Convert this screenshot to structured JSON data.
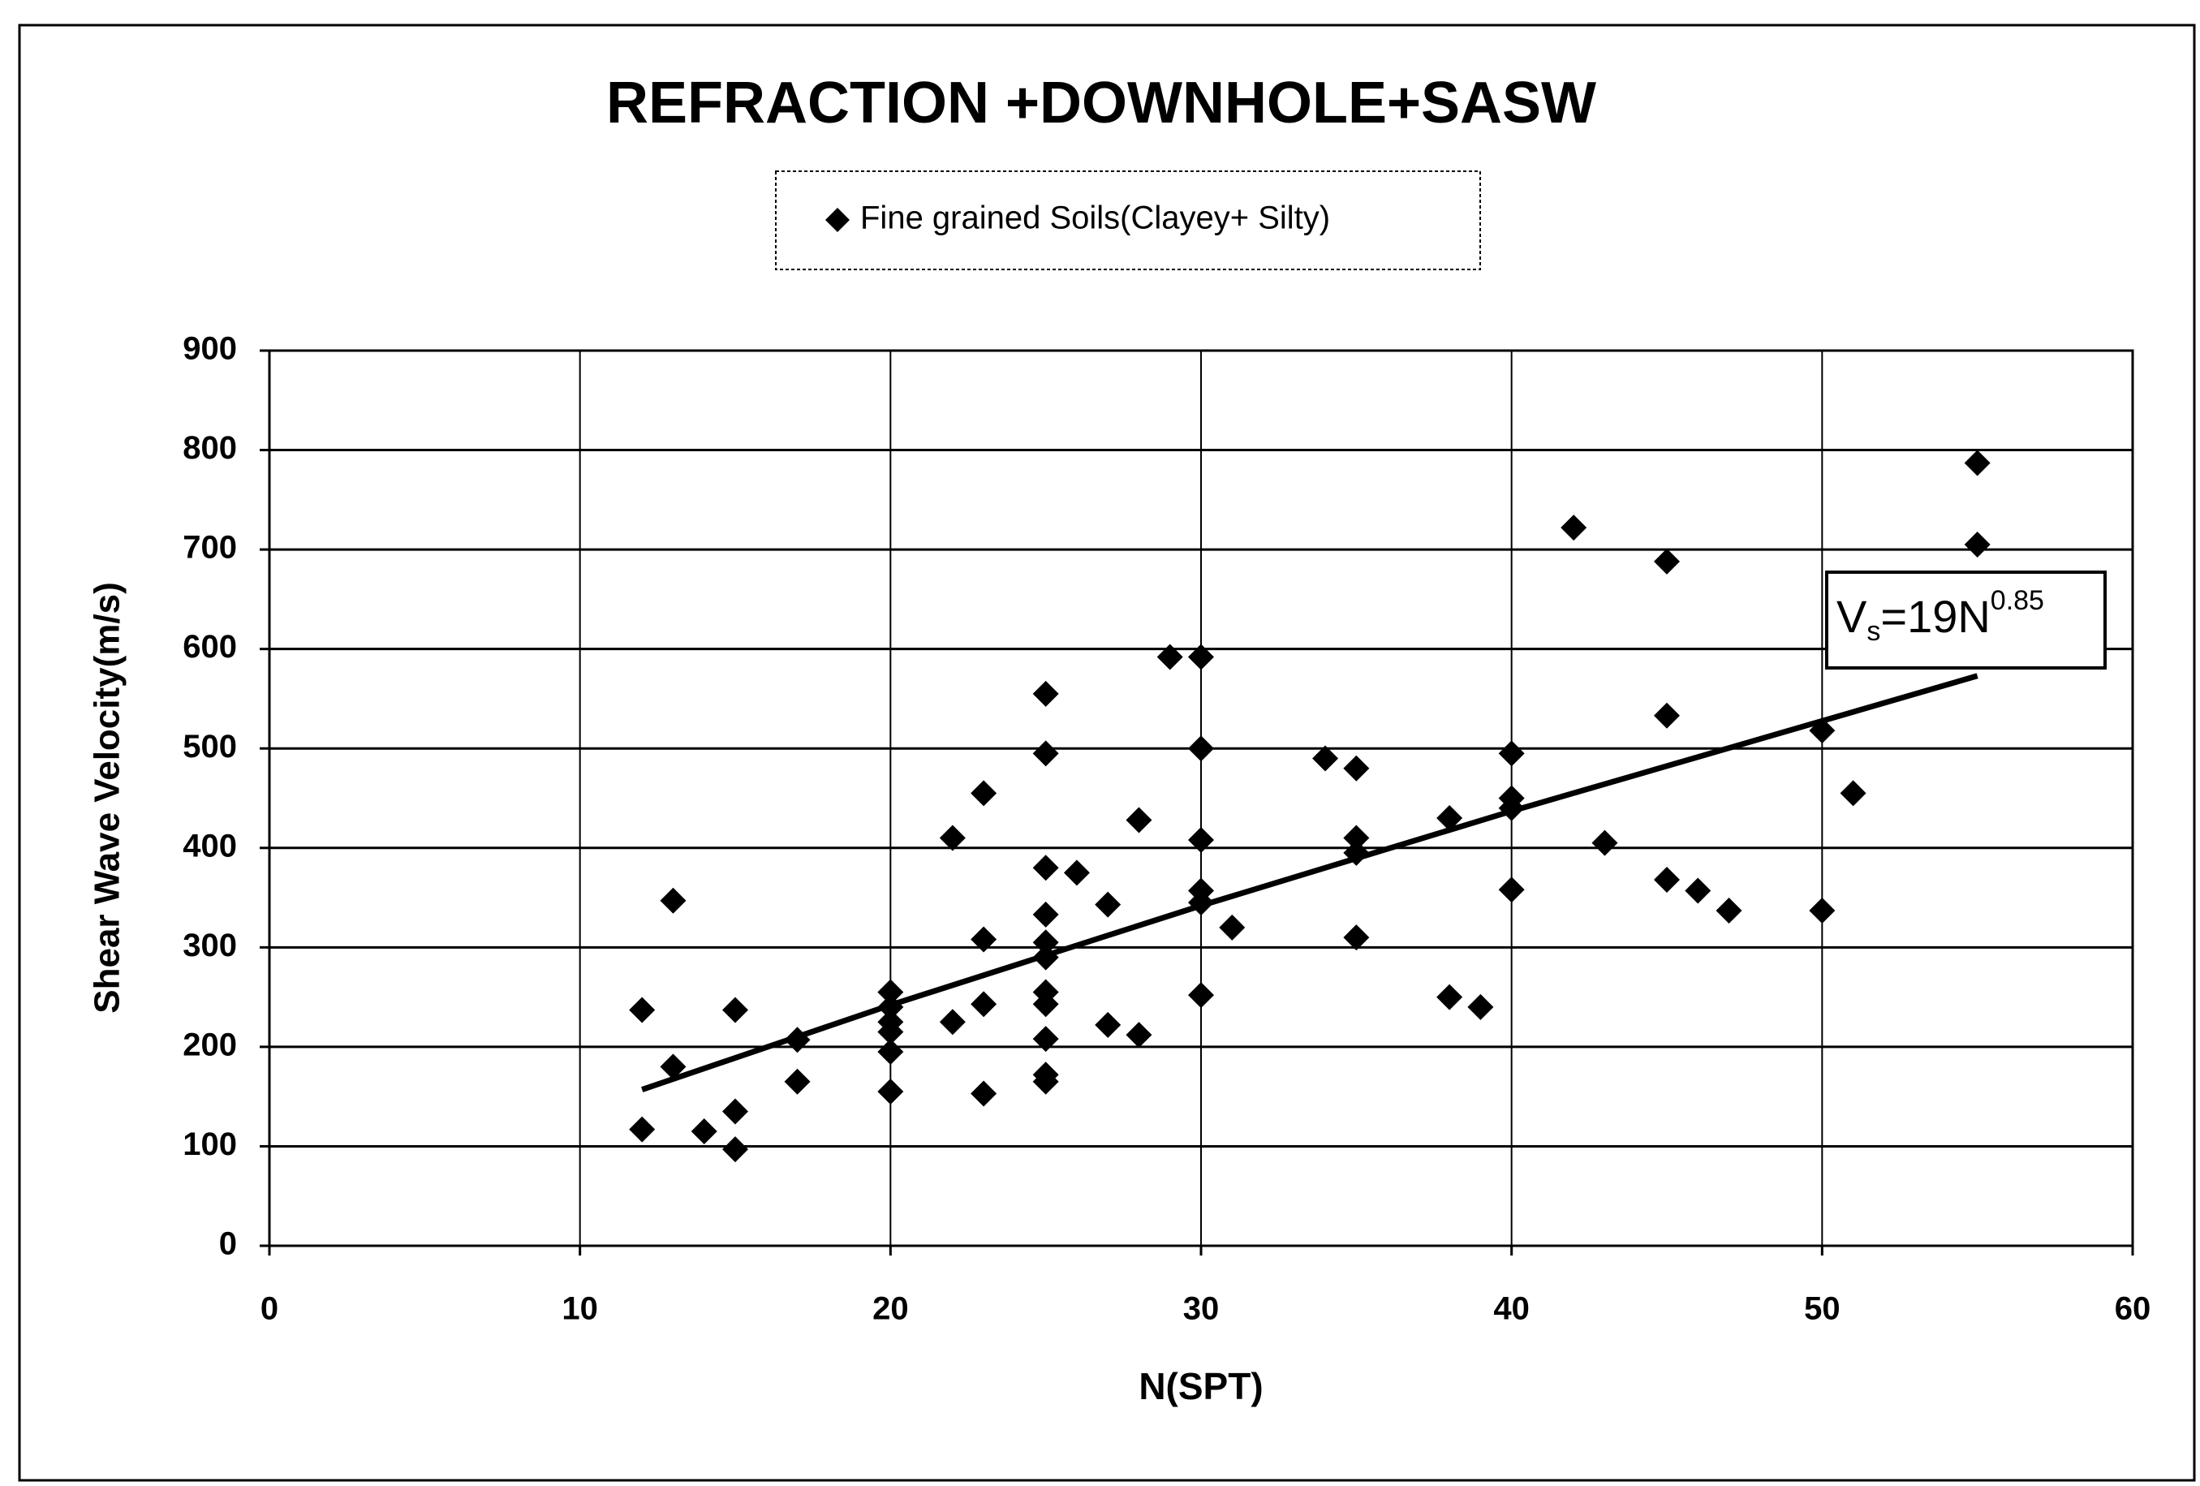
{
  "chart_data": {
    "type": "scatter",
    "title": "REFRACTION +DOWNHOLE+SASW",
    "xlabel": "N(SPT)",
    "ylabel": "Shear Wave Velocity(m/s)",
    "xlim": [
      0,
      60
    ],
    "xticks": [
      0,
      10,
      20,
      30,
      40,
      50,
      60
    ],
    "ylim": [
      0,
      900
    ],
    "yticks": [
      0,
      100,
      200,
      300,
      400,
      500,
      600,
      700,
      800,
      900
    ],
    "grid": true,
    "legend": "top",
    "series": [
      {
        "name": "Fine grained Soils(Clayey+ Silty)",
        "color": "#000000",
        "x": [
          12,
          12,
          13,
          13,
          14,
          15,
          15,
          15,
          17,
          17,
          20,
          20,
          20,
          20,
          20,
          20,
          22,
          22,
          23,
          23,
          23,
          23,
          25,
          25,
          25,
          25,
          25,
          25,
          25,
          25,
          25,
          25,
          25,
          26,
          27,
          27,
          28,
          28,
          29,
          30,
          30,
          30,
          30,
          30,
          30,
          31,
          34,
          35,
          35,
          35,
          35,
          38,
          38,
          39,
          40,
          40,
          40,
          40,
          42,
          43,
          45,
          45,
          45,
          46,
          47,
          50,
          50,
          51,
          55,
          55
        ],
        "values": [
          237,
          117,
          347,
          180,
          115,
          237,
          135,
          97,
          207,
          165,
          255,
          240,
          225,
          215,
          195,
          155,
          410,
          225,
          455,
          308,
          243,
          153,
          555,
          495,
          380,
          333,
          305,
          290,
          255,
          243,
          208,
          172,
          165,
          375,
          343,
          222,
          428,
          212,
          592,
          592,
          500,
          408,
          357,
          345,
          252,
          320,
          490,
          480,
          410,
          395,
          310,
          430,
          250,
          240,
          495,
          450,
          440,
          358,
          722,
          405,
          688,
          533,
          368,
          357,
          337,
          518,
          337,
          455,
          787,
          705
        ]
      }
    ],
    "trendline": {
      "color": "#000000",
      "x": [
        12,
        20,
        30,
        40,
        55
      ],
      "values": [
        157,
        242,
        342,
        437,
        573
      ]
    },
    "annotation": {
      "base": "V",
      "sub": "s",
      "rest": "=19N",
      "sup": "0.85"
    }
  }
}
